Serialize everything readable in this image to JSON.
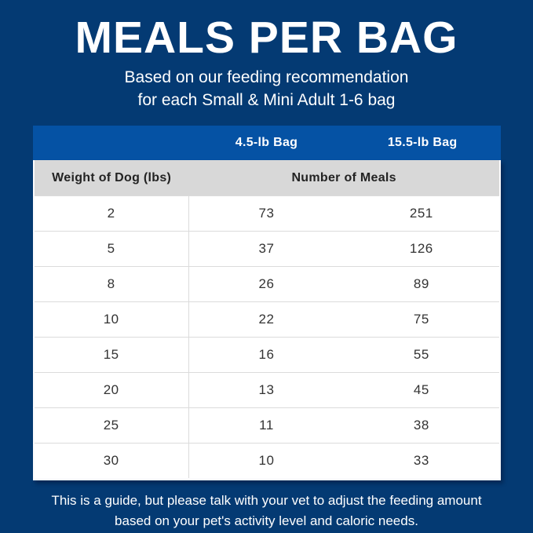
{
  "page": {
    "title": "MEALS PER BAG",
    "subtitle_line1": "Based on our feeding recommendation",
    "subtitle_line2": "for each Small & Mini Adult 1-6 bag",
    "footer_line1": "This is a guide, but please talk with your vet to adjust the feeding amount",
    "footer_line2": "based on your pet's activity level and caloric needs."
  },
  "colors": {
    "background_navy": "#043A73",
    "header_blue": "#0552A4",
    "subheader_gray": "#D8D8D8",
    "row_divider": "#DBDBDB",
    "cell_text": "#333333",
    "text_white": "#FFFFFF"
  },
  "table": {
    "header": {
      "col1": "",
      "col2": "4.5-lb Bag",
      "col3": "15.5-lb Bag"
    },
    "subheader": {
      "col1": "Weight of Dog (lbs)",
      "col23": "Number of Meals"
    },
    "rows": [
      {
        "weight": "2",
        "meals_45lb": "73",
        "meals_155lb": "251"
      },
      {
        "weight": "5",
        "meals_45lb": "37",
        "meals_155lb": "126"
      },
      {
        "weight": "8",
        "meals_45lb": "26",
        "meals_155lb": "89"
      },
      {
        "weight": "10",
        "meals_45lb": "22",
        "meals_155lb": "75"
      },
      {
        "weight": "15",
        "meals_45lb": "16",
        "meals_155lb": "55"
      },
      {
        "weight": "20",
        "meals_45lb": "13",
        "meals_155lb": "45"
      },
      {
        "weight": "25",
        "meals_45lb": "11",
        "meals_155lb": "38"
      },
      {
        "weight": "30",
        "meals_45lb": "10",
        "meals_155lb": "33"
      }
    ]
  },
  "chart_data": {
    "type": "table",
    "title": "MEALS PER BAG",
    "subtitle": "Based on our feeding recommendation for each Small & Mini Adult 1-6 bag",
    "columns": [
      "Weight of Dog (lbs)",
      "4.5-lb Bag — Number of Meals",
      "15.5-lb Bag — Number of Meals"
    ],
    "rows": [
      [
        2,
        73,
        251
      ],
      [
        5,
        37,
        126
      ],
      [
        8,
        26,
        89
      ],
      [
        10,
        22,
        75
      ],
      [
        15,
        16,
        55
      ],
      [
        20,
        13,
        45
      ],
      [
        25,
        11,
        38
      ],
      [
        30,
        10,
        33
      ]
    ],
    "note": "This is a guide, but please talk with your vet to adjust the feeding amount based on your pet's activity level and caloric needs."
  }
}
